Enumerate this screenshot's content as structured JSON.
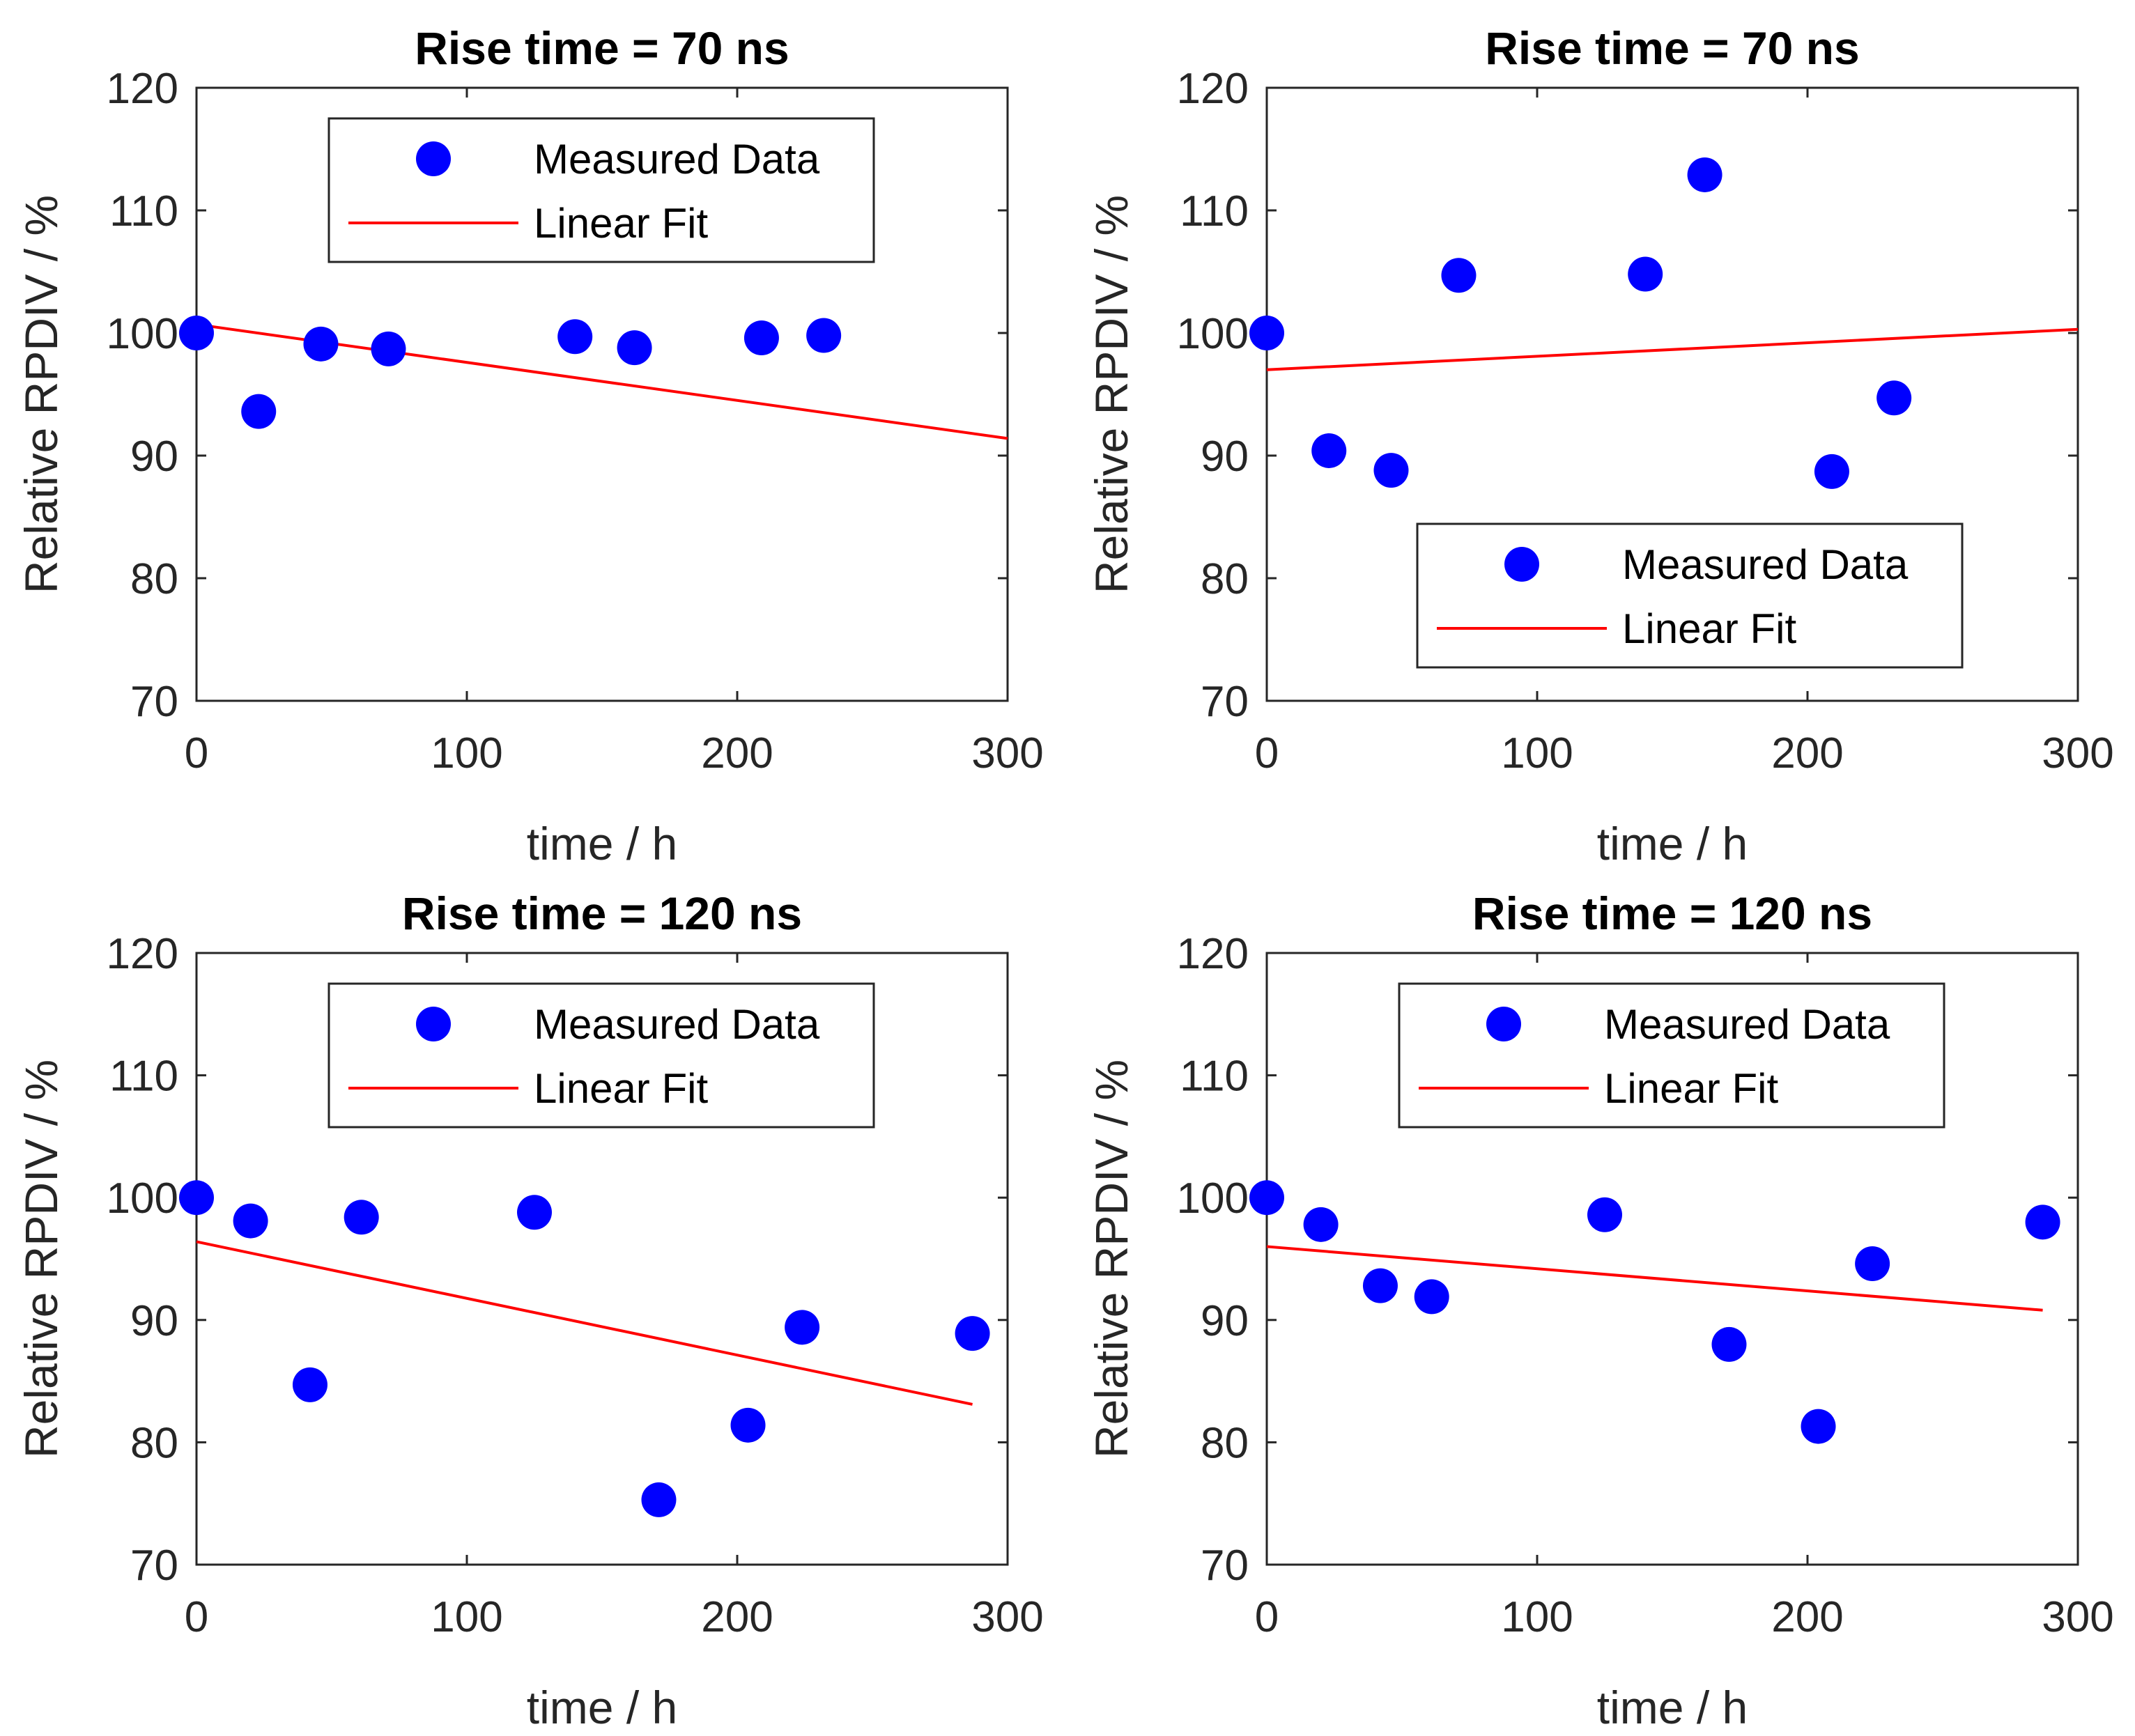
{
  "chart_data": [
    {
      "type": "scatter",
      "title": "Rise time = 70 ns",
      "xlabel": "time / h",
      "ylabel": "Relative RPDIV / %",
      "xlim": [
        0,
        300
      ],
      "ylim": [
        70,
        120
      ],
      "xticks": [
        0,
        100,
        200,
        300
      ],
      "yticks": [
        70,
        80,
        90,
        100,
        110,
        120
      ],
      "legend_position": "top-center",
      "series": [
        {
          "name": "Measured Data",
          "kind": "scatter",
          "color": "#0000ff",
          "x": [
            0,
            23,
            46,
            71,
            140,
            162,
            209,
            232
          ],
          "y": [
            100,
            93.6,
            99.1,
            98.7,
            99.7,
            98.8,
            99.6,
            99.8
          ]
        },
        {
          "name": "Linear Fit",
          "kind": "line",
          "color": "#ff0000",
          "x": [
            0,
            300
          ],
          "y": [
            100.7,
            91.4
          ]
        }
      ]
    },
    {
      "type": "scatter",
      "title": "Rise time = 70 ns",
      "xlabel": "time / h",
      "ylabel": "Relative RPDIV / %",
      "xlim": [
        0,
        300
      ],
      "ylim": [
        70,
        120
      ],
      "xticks": [
        0,
        100,
        200,
        300
      ],
      "yticks": [
        70,
        80,
        90,
        100,
        110,
        120
      ],
      "legend_position": "bottom-right",
      "series": [
        {
          "name": "Measured Data",
          "kind": "scatter",
          "color": "#0000ff",
          "x": [
            0,
            23,
            46,
            71,
            140,
            162,
            209,
            232
          ],
          "y": [
            100,
            90.4,
            88.8,
            104.7,
            104.8,
            112.9,
            88.7,
            94.7
          ]
        },
        {
          "name": "Linear Fit",
          "kind": "line",
          "color": "#ff0000",
          "x": [
            0,
            300
          ],
          "y": [
            97.0,
            100.3
          ]
        }
      ]
    },
    {
      "type": "scatter",
      "title": "Rise time = 120 ns",
      "xlabel": "time / h",
      "ylabel": "Relative RPDIV / %",
      "xlim": [
        0,
        300
      ],
      "ylim": [
        70,
        120
      ],
      "xticks": [
        0,
        100,
        200,
        300
      ],
      "yticks": [
        70,
        80,
        90,
        100,
        110,
        120
      ],
      "legend_position": "top-center",
      "series": [
        {
          "name": "Measured Data",
          "kind": "scatter",
          "color": "#0000ff",
          "x": [
            0,
            20,
            42,
            61,
            125,
            171,
            204,
            224,
            287
          ],
          "y": [
            100,
            98.1,
            84.7,
            98.4,
            98.8,
            75.3,
            81.4,
            89.4,
            88.9
          ]
        },
        {
          "name": "Linear Fit",
          "kind": "line",
          "color": "#ff0000",
          "x": [
            0,
            287
          ],
          "y": [
            96.4,
            83.1
          ]
        }
      ]
    },
    {
      "type": "scatter",
      "title": "Rise time = 120 ns",
      "xlabel": "time / h",
      "ylabel": "Relative RPDIV / %",
      "xlim": [
        0,
        300
      ],
      "ylim": [
        70,
        120
      ],
      "xticks": [
        0,
        100,
        200,
        300
      ],
      "yticks": [
        70,
        80,
        90,
        100,
        110,
        120
      ],
      "legend_position": "top-center",
      "series": [
        {
          "name": "Measured Data",
          "kind": "scatter",
          "color": "#0000ff",
          "x": [
            0,
            20,
            42,
            61,
            125,
            171,
            204,
            224,
            287
          ],
          "y": [
            100,
            97.8,
            92.8,
            91.9,
            98.6,
            88.0,
            81.3,
            94.6,
            98.0
          ]
        },
        {
          "name": "Linear Fit",
          "kind": "line",
          "color": "#ff0000",
          "x": [
            0,
            287
          ],
          "y": [
            96.0,
            90.8
          ]
        }
      ]
    }
  ]
}
